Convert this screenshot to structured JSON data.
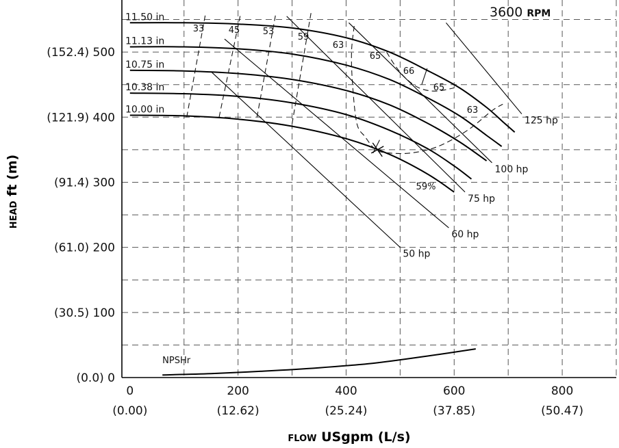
{
  "chart_data": {
    "type": "line",
    "title": "",
    "speed": {
      "value": "3600",
      "unit": "RPM"
    },
    "xlabel": {
      "smallcaps": "FLOW",
      "rest": " USgpm (L/s)"
    },
    "ylabel": {
      "smallcaps": "HEAD",
      "rest": " ft (m)"
    },
    "xlim": [
      -15,
      900
    ],
    "ylim": [
      0,
      580
    ],
    "grid": true,
    "x_ticks": [
      {
        "value": 0,
        "label": "0",
        "sublabel": "(0.00)"
      },
      {
        "value": 200,
        "label": "200",
        "sublabel": "(12.62)"
      },
      {
        "value": 400,
        "label": "400",
        "sublabel": "(25.24)"
      },
      {
        "value": 600,
        "label": "600",
        "sublabel": "(37.85)"
      },
      {
        "value": 800,
        "label": "800",
        "sublabel": "(50.47)"
      }
    ],
    "y_ticks": [
      {
        "value": 0,
        "label": "(0.0) 0"
      },
      {
        "value": 100,
        "label": "(30.5) 100"
      },
      {
        "value": 200,
        "label": "(61.0) 200"
      },
      {
        "value": 300,
        "label": "(91.4) 300"
      },
      {
        "value": 400,
        "label": "(121.9) 400"
      },
      {
        "value": 500,
        "label": "(152.4) 500"
      }
    ],
    "x_grid": [
      100,
      200,
      300,
      400,
      500,
      600,
      700,
      800,
      900
    ],
    "y_grid": [
      50,
      100,
      150,
      200,
      250,
      300,
      350,
      400,
      450,
      500,
      550
    ],
    "series": [
      {
        "name": "11.50 in",
        "x": [
          0,
          100,
          200,
          300,
          400,
          480,
          550,
          610,
          660,
          690,
          712
        ],
        "y": [
          545,
          545,
          543,
          537,
          522,
          500,
          472,
          445,
          415,
          393,
          377
        ]
      },
      {
        "name": "11.13 in",
        "x": [
          0,
          100,
          200,
          300,
          400,
          480,
          550,
          610,
          660,
          688
        ],
        "y": [
          508,
          508,
          505,
          497,
          480,
          458,
          430,
          402,
          372,
          355
        ]
      },
      {
        "name": "10.75 in",
        "x": [
          0,
          100,
          200,
          300,
          400,
          480,
          550,
          610,
          660
        ],
        "y": [
          472,
          471,
          467,
          458,
          441,
          419,
          391,
          362,
          333
        ]
      },
      {
        "name": "10.38 in",
        "x": [
          0,
          100,
          200,
          300,
          400,
          480,
          550,
          600,
          632
        ],
        "y": [
          437,
          436,
          432,
          422,
          404,
          380,
          352,
          325,
          305
        ]
      },
      {
        "name": "10.00 in",
        "x": [
          0,
          100,
          200,
          300,
          400,
          480,
          550,
          600
        ],
        "y": [
          403,
          402,
          397,
          386,
          367,
          343,
          313,
          285
        ]
      }
    ],
    "efficiency": [
      {
        "label": "33",
        "x": [
          105,
          140
        ],
        "y": [
          400,
          560
        ]
      },
      {
        "label": "45",
        "x": [
          165,
          205
        ],
        "y": [
          400,
          560
        ]
      },
      {
        "label": "53",
        "x": [
          235,
          270
        ],
        "y": [
          400,
          560
        ]
      },
      {
        "label": "59",
        "x": [
          300,
          335
        ],
        "y": [
          390,
          560
        ]
      },
      {
        "label": "63",
        "x": [
          415,
          410,
          412,
          420,
          435,
          455,
          480,
          520,
          570,
          625,
          670,
          690
        ],
        "y": [
          540,
          500,
          450,
          390,
          370,
          350,
          345,
          345,
          355,
          380,
          410,
          420
        ]
      },
      {
        "label": "65",
        "x": [
          475,
          490,
          510,
          535,
          565,
          600
        ],
        "y": [
          500,
          480,
          460,
          445,
          440,
          445
        ]
      },
      {
        "label": "66",
        "x": [
          540,
          550
        ],
        "y": [
          450,
          475
        ]
      },
      {
        "label": "59%",
        "x": [
          450,
          462
        ],
        "y": [
          345,
          365
        ]
      }
    ],
    "power_lines": [
      {
        "label": "50 hp",
        "x": [
          150,
          500
        ],
        "y": [
          470,
          200
        ]
      },
      {
        "label": "60 hp",
        "x": [
          175,
          590
        ],
        "y": [
          520,
          230
        ]
      },
      {
        "label": "75 hp",
        "x": [
          290,
          620
        ],
        "y": [
          555,
          285
        ]
      },
      {
        "label": "100 hp",
        "x": [
          405,
          670
        ],
        "y": [
          545,
          330
        ]
      },
      {
        "label": "125 hp",
        "x": [
          585,
          725
        ],
        "y": [
          545,
          405
        ]
      }
    ],
    "npshr": {
      "label": "NPSHr",
      "x": [
        60,
        150,
        250,
        350,
        450,
        550,
        600,
        640
      ],
      "y": [
        4,
        6,
        10,
        15,
        22,
        33,
        39,
        44
      ]
    }
  }
}
